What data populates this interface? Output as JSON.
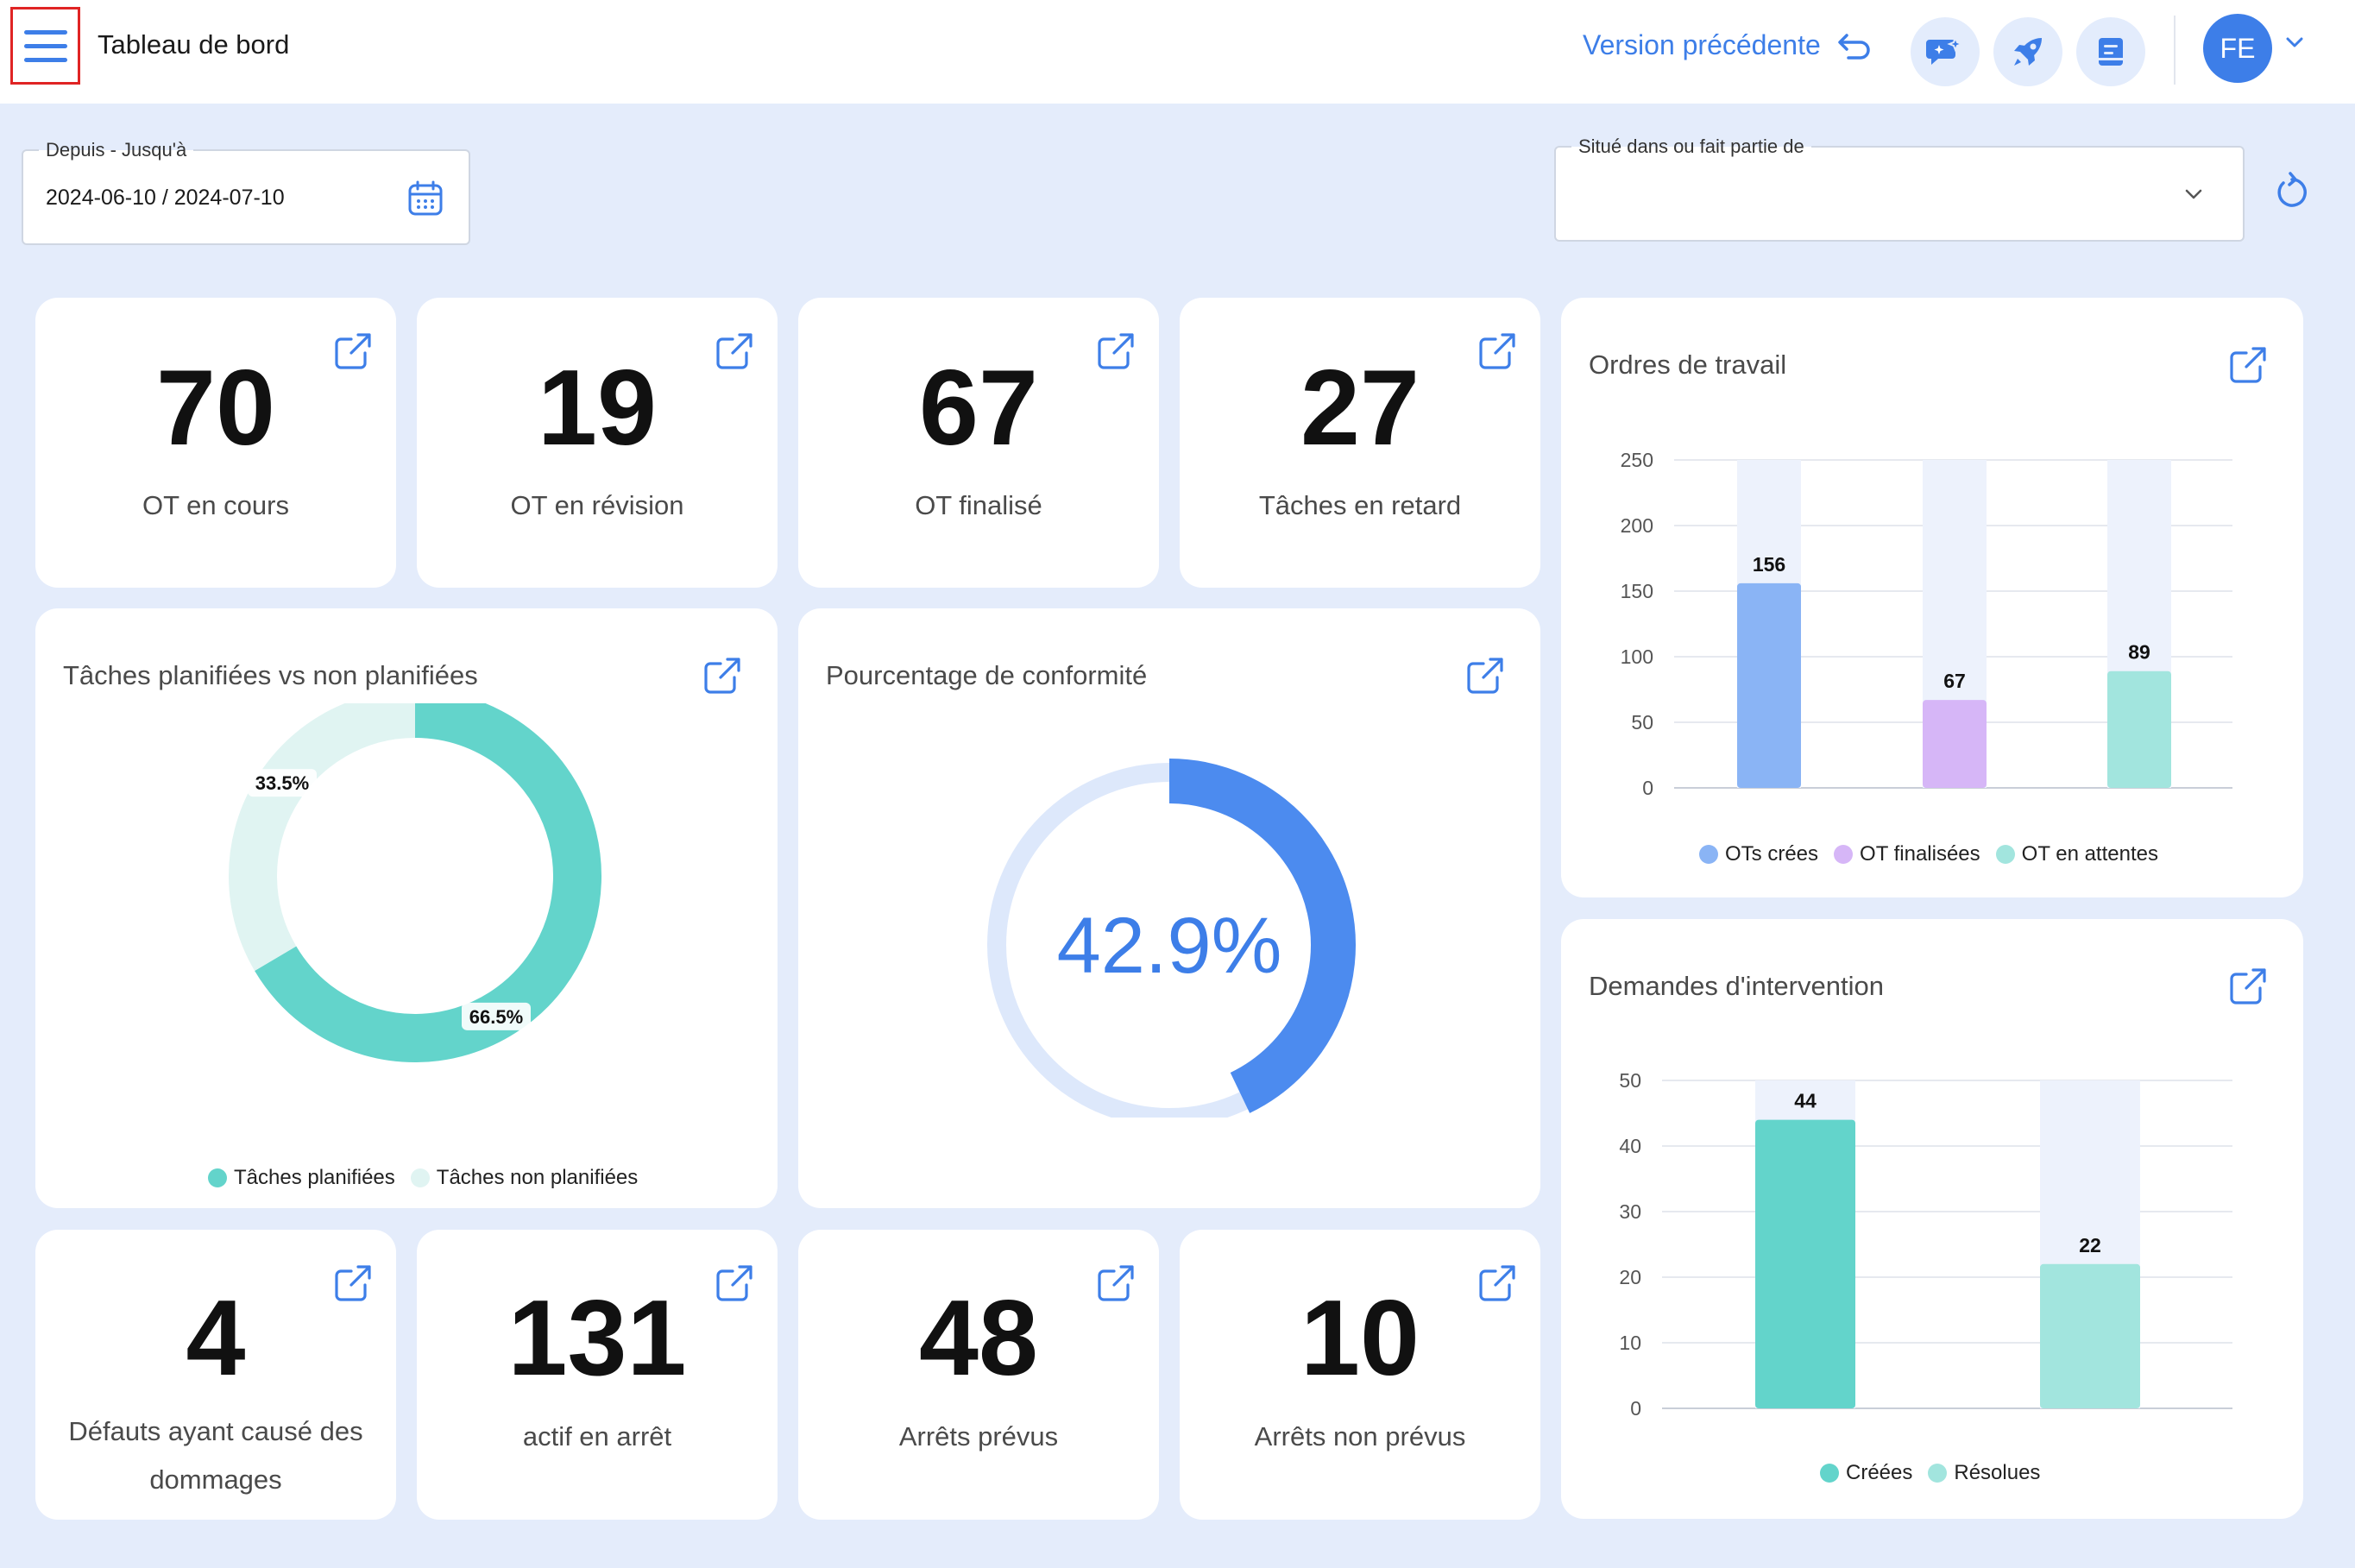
{
  "header": {
    "title": "Tableau de bord",
    "prev_version_label": "Version précédente",
    "avatar_initials": "FE"
  },
  "filters": {
    "date_label": "Depuis - Jusqu'à",
    "date_value": "2024-06-10 / 2024-07-10",
    "location_label": "Situé dans ou fait partie de",
    "location_value": ""
  },
  "kpis_top": [
    {
      "value": "70",
      "label": "OT en cours"
    },
    {
      "value": "19",
      "label": "OT en révision"
    },
    {
      "value": "67",
      "label": "OT finalisé"
    },
    {
      "value": "27",
      "label": "Tâches en retard"
    }
  ],
  "kpis_bottom": [
    {
      "value": "4",
      "label": "Défauts ayant causé des dommages"
    },
    {
      "value": "131",
      "label": "actif en arrêt"
    },
    {
      "value": "48",
      "label": "Arrêts prévus"
    },
    {
      "value": "10",
      "label": "Arrêts non prévus"
    }
  ],
  "colors": {
    "accent": "#3d7ee8",
    "teal": "#63d4cb",
    "teal_light": "#e0f4f2",
    "teal_pale": "#a2e5de",
    "purple": "#d6b6f7",
    "blue_bar": "#8ab4f5",
    "gauge_track": "#dde8fb",
    "bar_track": "#edf2fc"
  },
  "chart_data": [
    {
      "id": "planned",
      "type": "pie",
      "title": "Tâches planifiées vs non planifiées",
      "labels": [
        "Tâches planifiées",
        "Tâches non planifiées"
      ],
      "values": [
        66.5,
        33.5
      ],
      "value_labels": [
        "66.5%",
        "33.5%"
      ],
      "colors": [
        "#63d4cb",
        "#e0f4f2"
      ],
      "legend": "bottom"
    },
    {
      "id": "compliance",
      "type": "pie",
      "title": "Pourcentage de conformité",
      "value": 42.9,
      "value_label": "42.9%",
      "colors": [
        "#4c8bef",
        "#dde8fb"
      ]
    },
    {
      "id": "work_orders",
      "type": "bar",
      "title": "Ordres de travail",
      "categories": [
        "OTs crées",
        "OT finalisées",
        "OT en attentes"
      ],
      "values": [
        156,
        67,
        89
      ],
      "colors": [
        "#8ab4f5",
        "#d6b6f7",
        "#a2e5de"
      ],
      "ylim": [
        0,
        250
      ],
      "yticks": [
        0,
        50,
        100,
        150,
        200,
        250
      ],
      "legend": "bottom",
      "grid": true
    },
    {
      "id": "requests",
      "type": "bar",
      "title": "Demandes d'intervention",
      "categories": [
        "Créées",
        "Résolues"
      ],
      "values": [
        44,
        22
      ],
      "colors": [
        "#63d4cb",
        "#a2e5de"
      ],
      "ylim": [
        0,
        50
      ],
      "yticks": [
        0,
        10,
        20,
        30,
        40,
        50
      ],
      "legend": "bottom",
      "grid": true
    }
  ]
}
